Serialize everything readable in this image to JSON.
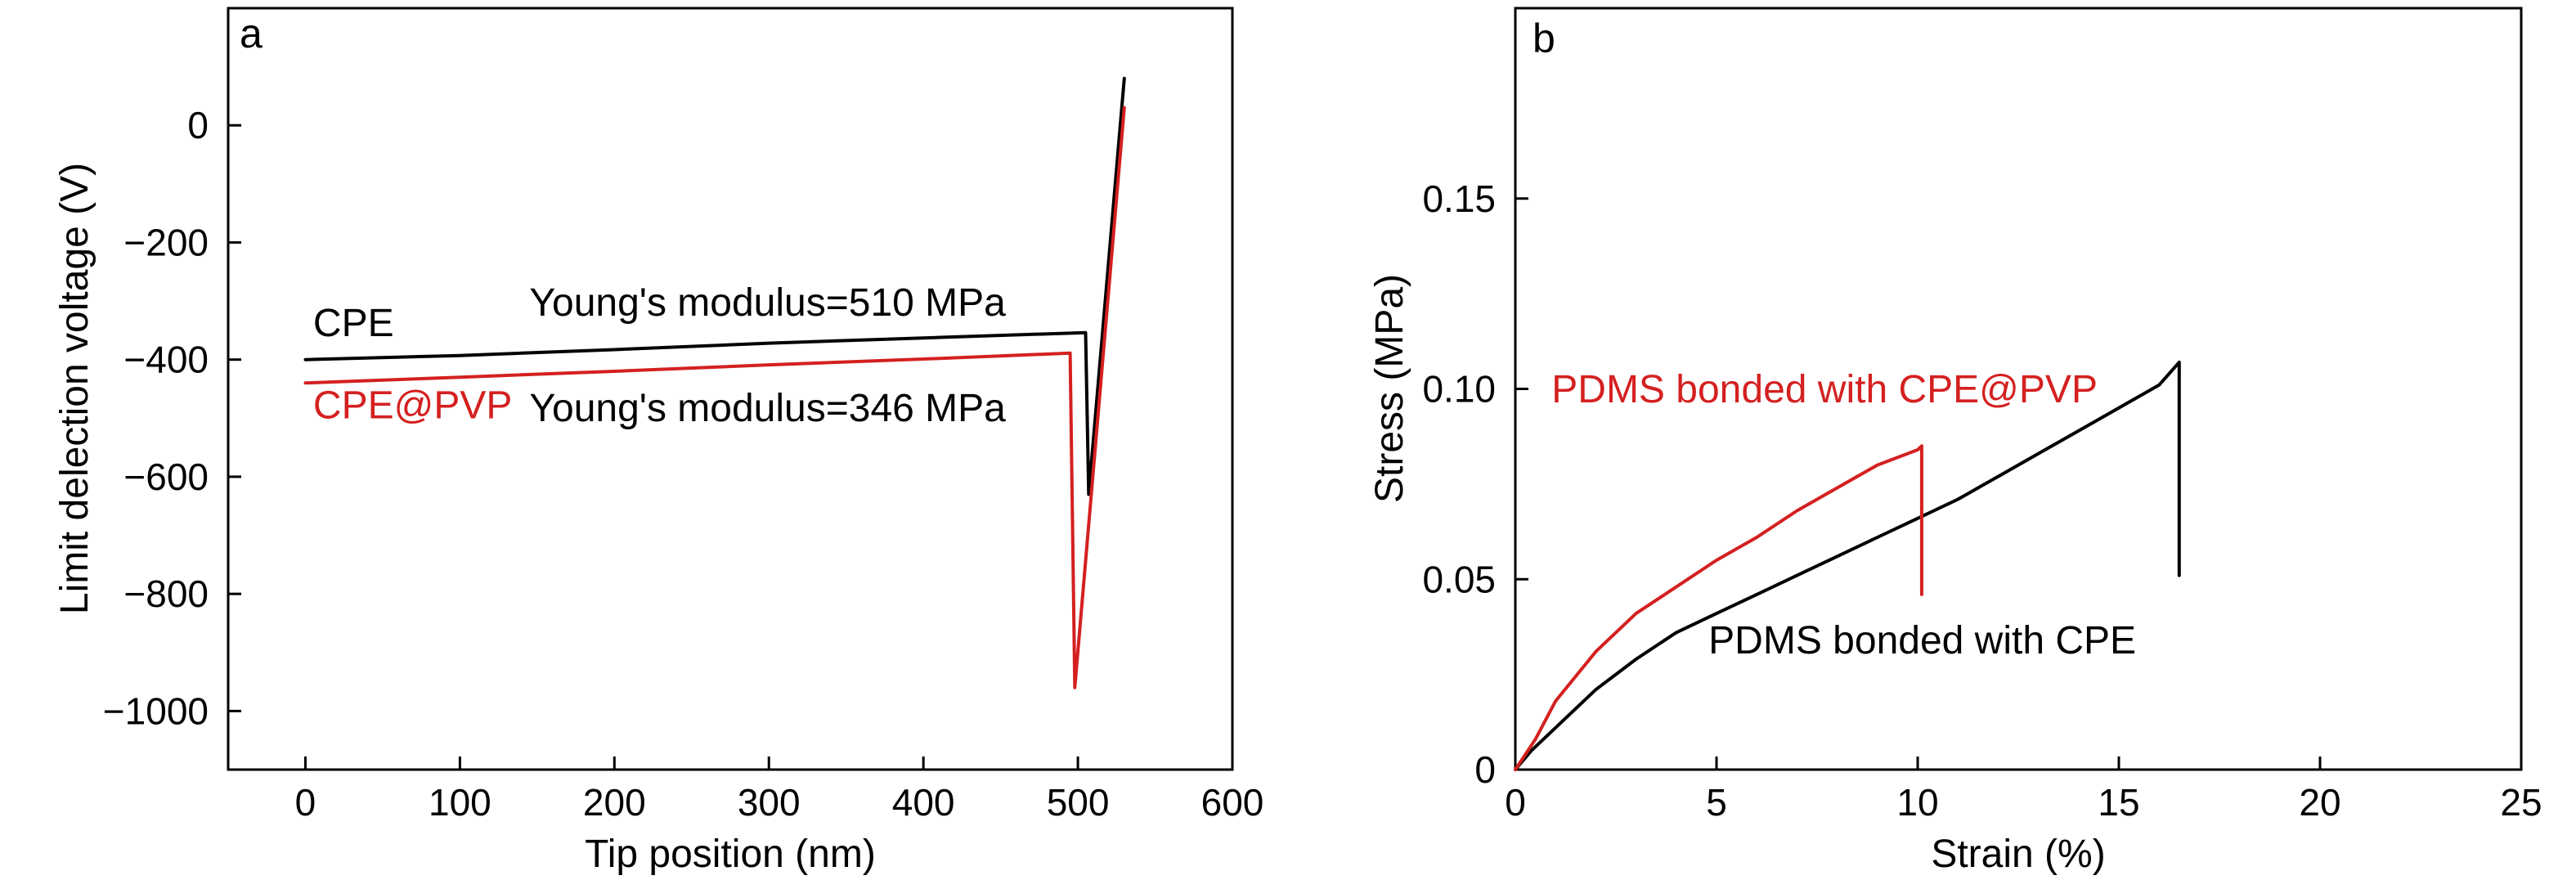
{
  "chart_data": [
    {
      "panel": "a",
      "type": "line",
      "xlabel": "Tip position (nm)",
      "ylabel": "Limit delection voltage (V)",
      "xlim": [
        -50,
        600
      ],
      "ylim": [
        -1100,
        200
      ],
      "xticks": [
        0,
        100,
        200,
        300,
        400,
        500,
        600
      ],
      "xtick_labels": [
        "0",
        "100",
        "200",
        "300",
        "400",
        "500",
        "600"
      ],
      "yticks": [
        0,
        -200,
        -400,
        -600,
        -800,
        -1000
      ],
      "ytick_labels": [
        "0",
        "−200",
        "−400",
        "−600",
        "−800",
        "−1000"
      ],
      "grid": false,
      "series": [
        {
          "name": "CPE",
          "color": "#000000",
          "x": [
            0,
            100,
            200,
            300,
            400,
            505,
            507,
            530
          ],
          "y": [
            -400,
            -393,
            -383,
            -372,
            -363,
            -354,
            -630,
            80
          ]
        },
        {
          "name": "CPE@PVP",
          "color": "#d42020",
          "x": [
            0,
            100,
            200,
            300,
            400,
            495,
            498,
            530
          ],
          "y": [
            -440,
            -430,
            -420,
            -409,
            -399,
            -389,
            -960,
            30
          ]
        }
      ],
      "annotations": [
        {
          "text": "CPE",
          "color": "#000000",
          "x": 5,
          "y": -360
        },
        {
          "text": "CPE@PVP",
          "color": "#d42020",
          "x": 5,
          "y": -500
        },
        {
          "text": "Young's modulus=510 MPa",
          "color": "#000000",
          "x": 145,
          "y": -325
        },
        {
          "text": "Young's modulus=346 MPa",
          "color": "#000000",
          "x": 145,
          "y": -505
        }
      ]
    },
    {
      "panel": "b",
      "type": "line",
      "xlabel": "Strain (%)",
      "ylabel": "Stress (MPa)",
      "xlim": [
        0,
        25
      ],
      "ylim": [
        0,
        0.2
      ],
      "xticks": [
        0,
        5,
        10,
        15,
        20,
        25
      ],
      "xtick_labels": [
        "0",
        "5",
        "10",
        "15",
        "20",
        "25"
      ],
      "yticks": [
        0,
        0.05,
        0.1,
        0.15
      ],
      "ytick_labels": [
        "0",
        "0.05",
        "0.10",
        "0.15"
      ],
      "grid": false,
      "series": [
        {
          "name": "PDMS bonded with CPE",
          "color": "#000000",
          "x": [
            0,
            0.4,
            1,
            2,
            3,
            4,
            5,
            6,
            7,
            8,
            9,
            10,
            11,
            12,
            13,
            14,
            15,
            16,
            16.5,
            16.5
          ],
          "y": [
            0,
            0.005,
            0.011,
            0.021,
            0.029,
            0.036,
            0.041,
            0.046,
            0.051,
            0.056,
            0.061,
            0.066,
            0.071,
            0.077,
            0.083,
            0.089,
            0.095,
            0.101,
            0.107,
            0.051
          ]
        },
        {
          "name": "PDMS bonded with CPE@PVP",
          "color": "#d42020",
          "x": [
            0,
            0.5,
            1,
            2,
            3,
            4,
            5,
            6,
            7,
            8,
            9,
            10,
            10.1,
            10.1
          ],
          "y": [
            0,
            0.008,
            0.018,
            0.031,
            0.041,
            0.048,
            0.055,
            0.061,
            0.068,
            0.074,
            0.08,
            0.084,
            0.085,
            0.046
          ]
        }
      ],
      "annotations": [
        {
          "text": "PDMS bonded with CPE@PVP",
          "color": "#d42020",
          "x": 0.9,
          "y": 0.0965
        },
        {
          "text": "PDMS bonded with CPE",
          "color": "#000000",
          "x": 4.8,
          "y": 0.0305
        }
      ]
    }
  ]
}
